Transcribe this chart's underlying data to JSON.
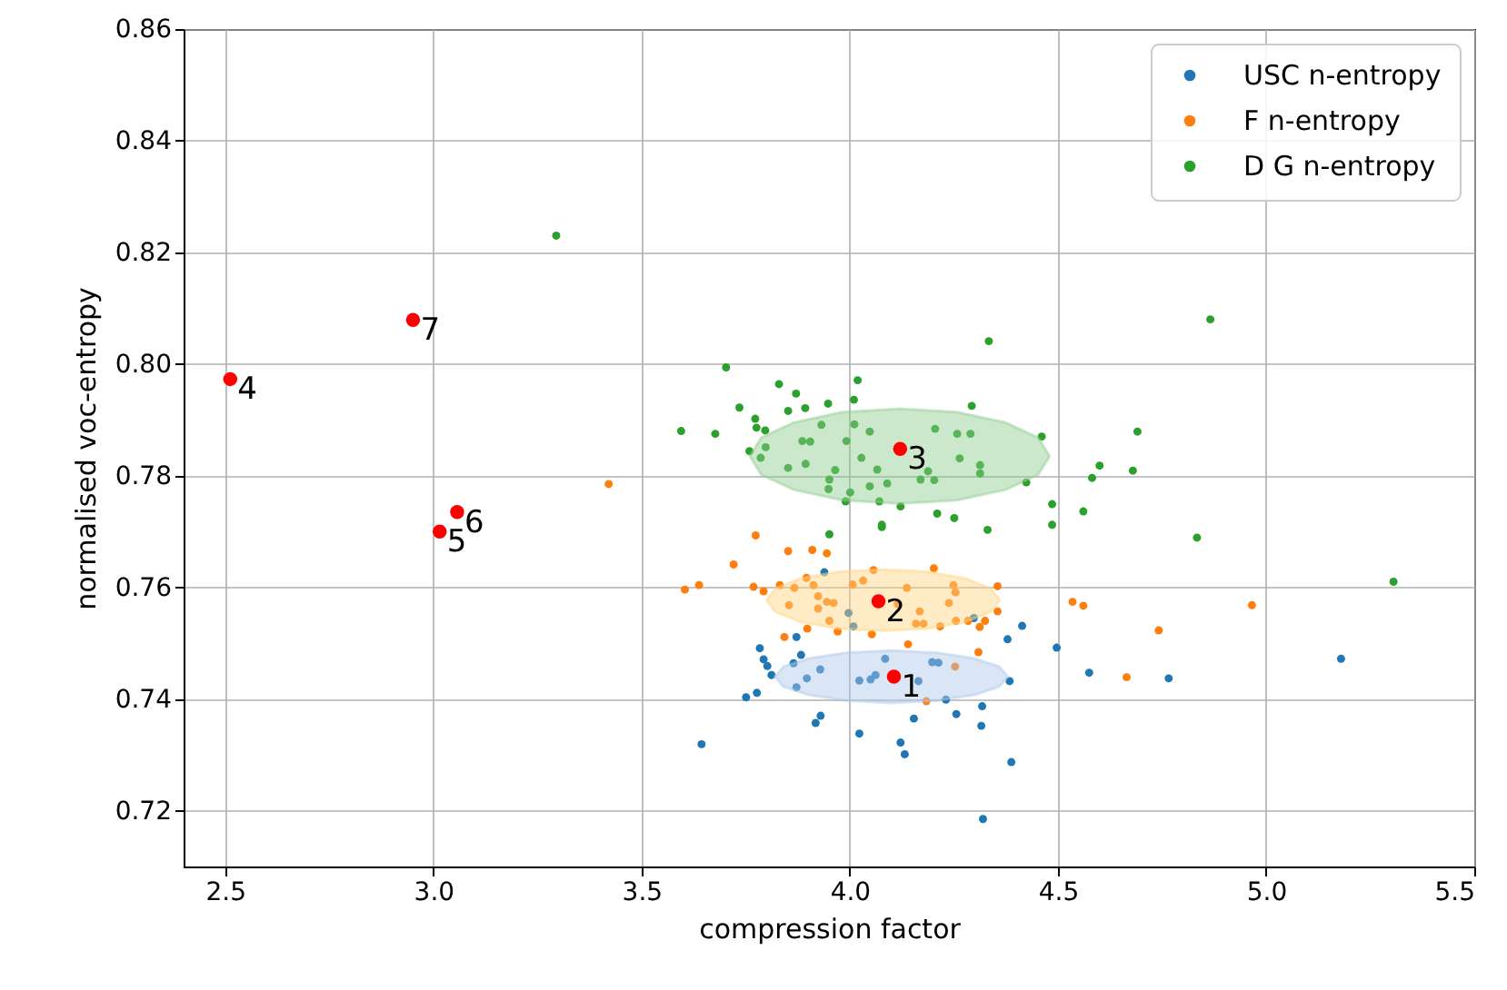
{
  "chart_data": {
    "type": "scatter",
    "xlabel": "compression factor",
    "ylabel": "normalised voc-entropy",
    "xlim": [
      2.4,
      5.5
    ],
    "ylim": [
      0.71,
      0.86
    ],
    "xticks": [
      {
        "value": 2.5,
        "label": "2.5"
      },
      {
        "value": 3,
        "label": "3.0"
      },
      {
        "value": 3.5,
        "label": "3.5"
      },
      {
        "value": 4,
        "label": "4.0"
      },
      {
        "value": 4.5,
        "label": "4.5"
      },
      {
        "value": 5,
        "label": "5.0"
      },
      {
        "value": 5.5,
        "label": "5.5"
      }
    ],
    "yticks": [
      0.72,
      0.74,
      0.76,
      0.78,
      {
        "value": 0.8,
        "label": "0.80"
      },
      0.82,
      0.84,
      0.86
    ],
    "grid": true,
    "legend": "top right",
    "marker": "circle",
    "series": [
      {
        "name": "USC n-entropy",
        "color": "#1f77b4",
        "x": [
          3.939,
          3.997,
          4.009,
          4.298,
          4.414,
          4.379,
          3.784,
          3.872,
          3.883,
          3.793,
          3.865,
          3.802,
          3.812,
          3.929,
          3.897,
          3.872,
          4.085,
          4.062,
          4.05,
          4.023,
          4.165,
          4.198,
          4.213,
          3.777,
          3.751,
          3.93,
          3.918,
          4.231,
          4.256,
          4.154,
          4.318,
          4.316,
          4.384,
          4.023,
          4.122,
          4.132,
          3.644,
          4.388,
          4.32,
          4.497,
          4.575,
          4.766,
          5.18
        ],
        "values": [
          0.7627,
          0.7554,
          0.753,
          0.7545,
          0.7531,
          0.7507,
          0.7491,
          0.7511,
          0.7479,
          0.7471,
          0.7464,
          0.7459,
          0.7443,
          0.7453,
          0.7437,
          0.7421,
          0.7472,
          0.7443,
          0.7435,
          0.7433,
          0.7432,
          0.7466,
          0.7465,
          0.7411,
          0.7403,
          0.737,
          0.7357,
          0.7399,
          0.7373,
          0.7365,
          0.7387,
          0.7352,
          0.7432,
          0.7338,
          0.7322,
          0.7301,
          0.7319,
          0.7287,
          0.7185,
          0.7492,
          0.7447,
          0.7437,
          0.7472
        ]
      },
      {
        "name": "F n-entropy",
        "color": "#ff7f0e",
        "x": [
          3.774,
          3.721,
          3.852,
          3.91,
          3.945,
          3.604,
          3.638,
          3.769,
          3.832,
          3.867,
          3.913,
          3.896,
          3.793,
          3.854,
          3.924,
          3.945,
          3.961,
          3.924,
          3.951,
          3.898,
          3.843,
          3.971,
          4.007,
          4.032,
          4.057,
          4.137,
          4.115,
          4.168,
          4.159,
          4.177,
          4.217,
          4.202,
          4.249,
          4.254,
          4.238,
          4.255,
          4.284,
          4.325,
          4.312,
          4.355,
          4.355,
          4.053,
          4.14,
          4.309,
          4.253,
          4.184,
          4.535,
          4.561,
          4.966,
          4.742,
          4.665,
          3.421
        ],
        "values": [
          0.7693,
          0.7641,
          0.7665,
          0.7667,
          0.7661,
          0.7596,
          0.7604,
          0.7601,
          0.7604,
          0.7599,
          0.7604,
          0.7617,
          0.7593,
          0.7568,
          0.7584,
          0.7574,
          0.7572,
          0.7562,
          0.754,
          0.7526,
          0.7511,
          0.7521,
          0.7605,
          0.7612,
          0.7631,
          0.7599,
          0.757,
          0.7557,
          0.7535,
          0.7535,
          0.753,
          0.7634,
          0.7604,
          0.7591,
          0.7572,
          0.754,
          0.754,
          0.754,
          0.7529,
          0.7602,
          0.7557,
          0.7516,
          0.7498,
          0.7484,
          0.7458,
          0.7396,
          0.7574,
          0.7567,
          0.7568,
          0.7523,
          0.7439,
          0.7785
        ]
      },
      {
        "name": "D G n-entropy",
        "color": "#2ca02c",
        "x": [
          3.295,
          4.334,
          3.703,
          4.019,
          3.83,
          3.871,
          4.01,
          3.948,
          3.735,
          3.852,
          3.893,
          4.293,
          3.773,
          3.932,
          4.011,
          3.776,
          3.797,
          4.048,
          4.205,
          4.258,
          4.29,
          3.595,
          3.677,
          3.886,
          3.905,
          3.992,
          3.798,
          3.759,
          3.786,
          4.028,
          4.264,
          3.852,
          3.894,
          3.965,
          4.066,
          4.188,
          4.313,
          4.313,
          3.951,
          4.17,
          4.203,
          4.09,
          4.048,
          3.949,
          4.001,
          3.99,
          4.071,
          4.122,
          4.21,
          4.251,
          4.077,
          4.866,
          4.691,
          4.461,
          4.6,
          4.582,
          4.68,
          4.424,
          4.486,
          4.561,
          4.486,
          4.331,
          4.834,
          5.306,
          3.951,
          4.077
        ],
        "values": [
          0.823,
          0.8041,
          0.7994,
          0.7971,
          0.7964,
          0.7947,
          0.7936,
          0.7929,
          0.7922,
          0.7916,
          0.7921,
          0.7925,
          0.7902,
          0.7891,
          0.7892,
          0.7886,
          0.7881,
          0.7879,
          0.7884,
          0.7875,
          0.7875,
          0.788,
          0.7875,
          0.7862,
          0.7861,
          0.7862,
          0.7851,
          0.7844,
          0.7832,
          0.7832,
          0.7831,
          0.7814,
          0.7821,
          0.781,
          0.7811,
          0.7808,
          0.7819,
          0.7804,
          0.7793,
          0.7793,
          0.7792,
          0.7786,
          0.7781,
          0.7776,
          0.777,
          0.7754,
          0.7754,
          0.7745,
          0.7732,
          0.7724,
          0.7712,
          0.808,
          0.7879,
          0.787,
          0.7818,
          0.7796,
          0.7809,
          0.7788,
          0.7749,
          0.7736,
          0.7712,
          0.7703,
          0.7689,
          0.761,
          0.7695,
          0.7708
        ]
      },
      {
        "type": "area",
        "marker": "none",
        "color": "#aec7e8",
        "x": [
          4.38,
          4.359,
          4.298,
          4.207,
          4.1,
          3.993,
          3.902,
          3.841,
          3.82,
          3.841,
          3.902,
          3.993,
          4.1,
          4.207,
          4.298,
          4.359,
          4.38
        ],
        "values": [
          0.744,
          0.7458,
          0.7473,
          0.7483,
          0.7487,
          0.7483,
          0.7473,
          0.7458,
          0.744,
          0.7422,
          0.7407,
          0.7397,
          0.7393,
          0.7397,
          0.7407,
          0.7422,
          0.744
        ]
      },
      {
        "type": "area",
        "marker": "none",
        "color": "#ffd580",
        "x": [
          4.36,
          4.339,
          4.278,
          4.187,
          4.08,
          3.973,
          3.882,
          3.821,
          3.8,
          3.821,
          3.882,
          3.973,
          4.08,
          4.187,
          4.278,
          4.339,
          4.36
        ],
        "values": [
          0.7577,
          0.7598,
          0.7616,
          0.7628,
          0.7632,
          0.7628,
          0.7616,
          0.7598,
          0.7577,
          0.7556,
          0.7538,
          0.7526,
          0.7522,
          0.7526,
          0.7538,
          0.7556,
          0.7577
        ]
      },
      {
        "type": "area",
        "marker": "none",
        "color": "#8fcb8f",
        "x": [
          4.48,
          4.453,
          4.375,
          4.258,
          4.12,
          3.982,
          3.865,
          3.787,
          3.76,
          3.787,
          3.865,
          3.982,
          4.12,
          4.258,
          4.375,
          4.453,
          4.48
        ],
        "values": [
          0.7835,
          0.7868,
          0.7895,
          0.7914,
          0.792,
          0.7914,
          0.7895,
          0.7868,
          0.7835,
          0.7802,
          0.7775,
          0.7756,
          0.775,
          0.7756,
          0.7775,
          0.7802,
          0.7835
        ]
      },
      {
        "color": "#ff0000",
        "x": [
          4.106,
          4.069,
          4.121,
          2.512,
          3.015,
          3.057,
          2.951
        ],
        "values": [
          0.744,
          0.7575,
          0.7848,
          0.7973,
          0.77,
          0.7735,
          0.8079
        ]
      }
    ],
    "annotations": [
      {
        "text": "1",
        "x": 4.106,
        "y": 0.744
      },
      {
        "text": "2",
        "x": 4.069,
        "y": 0.7575
      },
      {
        "text": "3",
        "x": 4.121,
        "y": 0.7848
      },
      {
        "text": "4",
        "x": 2.512,
        "y": 0.7973
      },
      {
        "text": "5",
        "x": 3.015,
        "y": 0.77
      },
      {
        "text": "6",
        "x": 3.057,
        "y": 0.7735
      },
      {
        "text": "7",
        "x": 2.951,
        "y": 0.8079
      }
    ]
  }
}
